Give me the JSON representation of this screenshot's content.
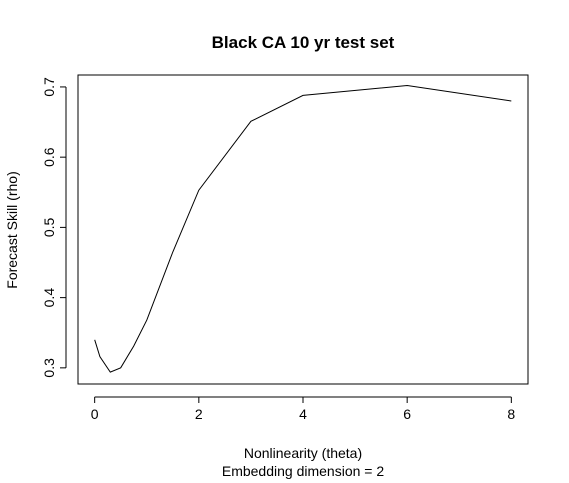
{
  "chart_data": {
    "type": "line",
    "title": "Black CA 10 yr test set",
    "xlabel": "Nonlinearity (theta)",
    "subtitle": "Embedding dimension = 2",
    "ylabel": "Forecast Skill (rho)",
    "xlim": [
      -0.32,
      8.32
    ],
    "ylim": [
      0.277,
      0.717
    ],
    "xticks": [
      0,
      2,
      4,
      6,
      8
    ],
    "yticks": [
      0.3,
      0.4,
      0.5,
      0.6,
      0.7
    ],
    "xtick_labels": [
      "0",
      "2",
      "4",
      "6",
      "8"
    ],
    "ytick_labels": [
      "0.3",
      "0.4",
      "0.5",
      "0.6",
      "0.7"
    ],
    "grid": false,
    "series": [
      {
        "x": [
          0,
          0.1,
          0.3,
          0.5,
          0.75,
          1,
          1.5,
          2,
          3,
          4,
          6,
          8
        ],
        "y": [
          0.34,
          0.316,
          0.294,
          0.3,
          0.331,
          0.368,
          0.465,
          0.553,
          0.651,
          0.688,
          0.702,
          0.68
        ]
      }
    ]
  }
}
